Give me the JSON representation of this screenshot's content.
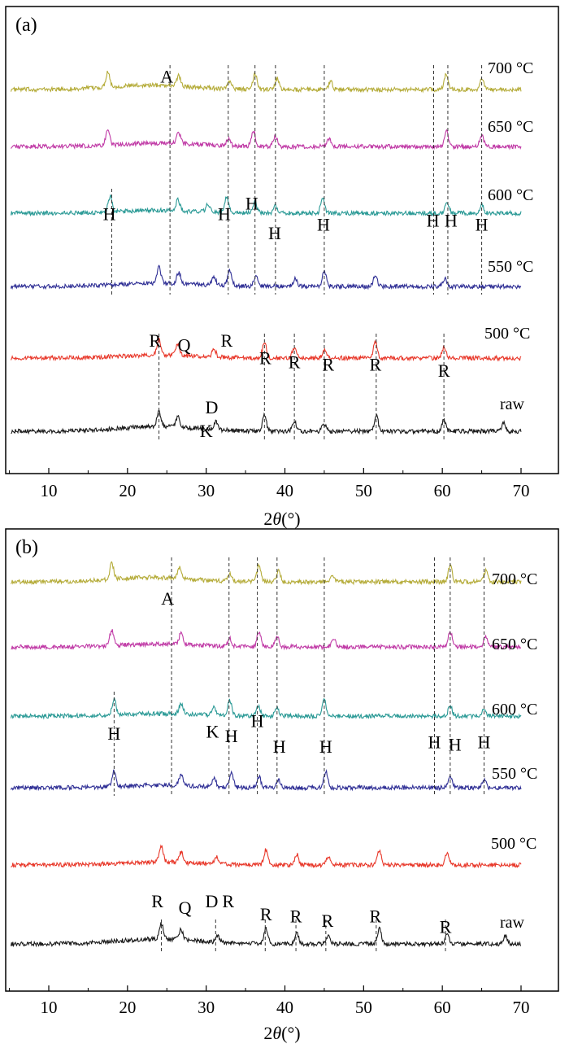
{
  "x_axis": {
    "label_symbol": "2θ",
    "label_unit": "(°)",
    "ticks": [
      "10",
      "20",
      "30",
      "40",
      "50",
      "60",
      "70"
    ]
  },
  "colors": {
    "700 °C": "#b5ac3a",
    "650 °C": "#c03aa6",
    "600 °C": "#2b9a96",
    "550 °C": "#2f2f95",
    "500 °C": "#e8382a",
    "raw": "#1a1a1a"
  },
  "chart_data": [
    {
      "type": "line",
      "panel_label": "(a)",
      "xlabel": "2θ(°)",
      "xlim": [
        5,
        71
      ],
      "grid": false,
      "series": [
        {
          "name": "700 °C",
          "peaks": [
            17.5,
            26.5,
            33.0,
            36.2,
            39.0,
            45.8,
            60.5,
            65.0
          ],
          "noise": 0.22,
          "hump_amp": 0.9,
          "hump_center": 23
        },
        {
          "name": "650 °C",
          "peaks": [
            17.5,
            26.5,
            32.8,
            36.0,
            38.8,
            45.6,
            60.5,
            65.0
          ],
          "noise": 0.22,
          "hump_amp": 0.7,
          "hump_center": 24
        },
        {
          "name": "600 °C",
          "peaks": [
            17.8,
            26.4,
            30.2,
            32.6,
            36.2,
            38.8,
            44.8,
            60.6,
            65.0
          ],
          "noise": 0.22,
          "hump_amp": 0.6,
          "hump_center": 24
        },
        {
          "name": "550 °C",
          "peaks": [
            24.0,
            26.5,
            31.0,
            33.0,
            36.3,
            41.3,
            45.0,
            51.5,
            60.3
          ],
          "noise": 0.22,
          "hump_amp": 0.7,
          "hump_center": 24
        },
        {
          "name": "500 °C",
          "peaks": [
            24.0,
            26.4,
            31.0,
            37.4,
            41.2,
            45.0,
            51.5,
            60.2
          ],
          "noise": 0.22,
          "hump_amp": 0.6,
          "hump_center": 24
        },
        {
          "name": "raw",
          "peaks": [
            24.0,
            26.4,
            31.2,
            37.4,
            41.2,
            45.0,
            51.6,
            60.2,
            67.8
          ],
          "noise": 0.22,
          "hump_amp": 1.0,
          "hump_center": 24
        }
      ],
      "series_labels": [
        "700 °C",
        "650 °C",
        "600 °C",
        "550 °C",
        "500 °C",
        "raw"
      ],
      "guide_lines": [
        {
          "x": 18.0,
          "from": "600 °C",
          "to": "550 °C"
        },
        {
          "x": 25.4,
          "from": "700 °C",
          "to": "550 °C"
        },
        {
          "x": 32.8,
          "from": "700 °C",
          "to": "550 °C"
        },
        {
          "x": 36.2,
          "from": "700 °C",
          "to": "550 °C"
        },
        {
          "x": 38.8,
          "from": "700 °C",
          "to": "550 °C"
        },
        {
          "x": 45.0,
          "from": "700 °C",
          "to": "550 °C"
        },
        {
          "x": 58.9,
          "from": "700 °C",
          "to": "550 °C"
        },
        {
          "x": 60.7,
          "from": "700 °C",
          "to": "550 °C"
        },
        {
          "x": 65.0,
          "from": "700 °C",
          "to": "550 °C"
        },
        {
          "x": 24.0,
          "from": "500 °C",
          "to": "raw"
        },
        {
          "x": 37.4,
          "from": "500 °C",
          "to": "raw"
        },
        {
          "x": 41.2,
          "from": "500 °C",
          "to": "raw"
        },
        {
          "x": 45.0,
          "from": "500 °C",
          "to": "raw"
        },
        {
          "x": 51.6,
          "from": "500 °C",
          "to": "raw"
        },
        {
          "x": 60.2,
          "from": "500 °C",
          "to": "raw"
        }
      ],
      "annotations": [
        {
          "text": "A",
          "x": 25.0,
          "y": 18.2
        },
        {
          "text": "H",
          "x": 17.7,
          "y": 11.8
        },
        {
          "text": "H",
          "x": 32.3,
          "y": 11.8
        },
        {
          "text": "H",
          "x": 35.8,
          "y": 12.3
        },
        {
          "text": "H",
          "x": 38.7,
          "y": 10.9
        },
        {
          "text": "H",
          "x": 44.9,
          "y": 11.3
        },
        {
          "text": "H",
          "x": 58.8,
          "y": 11.5
        },
        {
          "text": "H",
          "x": 61.1,
          "y": 11.5
        },
        {
          "text": "H",
          "x": 65.0,
          "y": 11.3
        },
        {
          "text": "R",
          "x": 23.5,
          "y": 5.9
        },
        {
          "text": "Q",
          "x": 27.2,
          "y": 5.7
        },
        {
          "text": "R",
          "x": 32.6,
          "y": 5.9
        },
        {
          "text": "R",
          "x": 37.5,
          "y": 5.1
        },
        {
          "text": "R",
          "x": 41.2,
          "y": 4.9
        },
        {
          "text": "R",
          "x": 45.5,
          "y": 4.8
        },
        {
          "text": "R",
          "x": 51.5,
          "y": 4.8
        },
        {
          "text": "R",
          "x": 60.2,
          "y": 4.5
        },
        {
          "text": "D",
          "x": 30.7,
          "y": 2.8
        },
        {
          "text": "K",
          "x": 30.0,
          "y": 1.7
        }
      ]
    },
    {
      "type": "line",
      "panel_label": "(b)",
      "xlabel": "2θ(°)",
      "xlim": [
        5,
        71
      ],
      "grid": false,
      "series": [
        {
          "name": "700 °C",
          "peaks": [
            18.0,
            26.6,
            33.0,
            36.7,
            39.2,
            46.0,
            61.0,
            65.5
          ],
          "noise": 0.22,
          "hump_amp": 0.9,
          "hump_center": 23
        },
        {
          "name": "650 °C",
          "peaks": [
            18.0,
            26.8,
            33.0,
            36.7,
            39.0,
            46.2,
            61.0,
            65.5
          ],
          "noise": 0.22,
          "hump_amp": 0.6,
          "hump_center": 24
        },
        {
          "name": "600 °C",
          "peaks": [
            18.3,
            26.8,
            30.9,
            33.0,
            36.6,
            39.0,
            45.0,
            61.0,
            65.3
          ],
          "noise": 0.22,
          "hump_amp": 0.5,
          "hump_center": 24
        },
        {
          "name": "550 °C",
          "peaks": [
            18.3,
            26.8,
            31.0,
            33.2,
            36.7,
            39.2,
            45.2,
            61.0,
            65.3
          ],
          "noise": 0.22,
          "hump_amp": 0.5,
          "hump_center": 24
        },
        {
          "name": "500 °C",
          "peaks": [
            24.3,
            26.8,
            31.3,
            37.6,
            41.5,
            45.5,
            52.0,
            60.6
          ],
          "noise": 0.22,
          "hump_amp": 0.6,
          "hump_center": 24
        },
        {
          "name": "raw",
          "peaks": [
            24.3,
            26.8,
            31.4,
            37.6,
            41.5,
            45.5,
            52.0,
            60.6,
            68.0
          ],
          "noise": 0.22,
          "hump_amp": 1.0,
          "hump_center": 24
        }
      ],
      "series_labels": [
        "700 °C",
        "650 °C",
        "600 °C",
        "550 °C",
        "500 °C",
        "raw"
      ],
      "guide_lines": [
        {
          "x": 18.3,
          "from": "600 °C",
          "to": "550 °C"
        },
        {
          "x": 25.6,
          "from": "700 °C",
          "to": "550 °C"
        },
        {
          "x": 32.9,
          "from": "700 °C",
          "to": "550 °C"
        },
        {
          "x": 36.5,
          "from": "700 °C",
          "to": "550 °C"
        },
        {
          "x": 39.0,
          "from": "700 °C",
          "to": "550 °C"
        },
        {
          "x": 45.0,
          "from": "700 °C",
          "to": "550 °C"
        },
        {
          "x": 59.0,
          "from": "700 °C",
          "to": "550 °C"
        },
        {
          "x": 61.0,
          "from": "700 °C",
          "to": "550 °C"
        },
        {
          "x": 65.3,
          "from": "700 °C",
          "to": "550 °C"
        },
        {
          "x": 24.3,
          "from": "raw",
          "to": "raw"
        },
        {
          "x": 31.2,
          "from": "raw",
          "to": "raw"
        },
        {
          "x": 37.5,
          "from": "raw",
          "to": "raw"
        },
        {
          "x": 41.4,
          "from": "raw",
          "to": "raw"
        },
        {
          "x": 45.2,
          "from": "raw",
          "to": "raw"
        },
        {
          "x": 51.6,
          "from": "raw",
          "to": "raw"
        },
        {
          "x": 60.4,
          "from": "raw",
          "to": "raw"
        }
      ],
      "annotations": [
        {
          "text": "A",
          "x": 25.1,
          "y": 18.0
        },
        {
          "text": "H",
          "x": 18.3,
          "y": 11.7
        },
        {
          "text": "K",
          "x": 30.8,
          "y": 11.8
        },
        {
          "text": "H",
          "x": 33.2,
          "y": 11.6
        },
        {
          "text": "H",
          "x": 36.5,
          "y": 12.3
        },
        {
          "text": "H",
          "x": 39.3,
          "y": 11.1
        },
        {
          "text": "H",
          "x": 45.2,
          "y": 11.1
        },
        {
          "text": "H",
          "x": 59.0,
          "y": 11.3
        },
        {
          "text": "H",
          "x": 61.6,
          "y": 11.2
        },
        {
          "text": "H",
          "x": 65.3,
          "y": 11.3
        },
        {
          "text": "R",
          "x": 23.8,
          "y": 3.9
        },
        {
          "text": "Q",
          "x": 27.3,
          "y": 3.6
        },
        {
          "text": "D",
          "x": 30.7,
          "y": 3.9
        },
        {
          "text": "R",
          "x": 32.8,
          "y": 3.9
        },
        {
          "text": "R",
          "x": 37.6,
          "y": 3.3
        },
        {
          "text": "R",
          "x": 41.4,
          "y": 3.2
        },
        {
          "text": "R",
          "x": 45.4,
          "y": 3.0
        },
        {
          "text": "R",
          "x": 51.5,
          "y": 3.2
        },
        {
          "text": "R",
          "x": 60.4,
          "y": 2.7
        }
      ]
    }
  ]
}
